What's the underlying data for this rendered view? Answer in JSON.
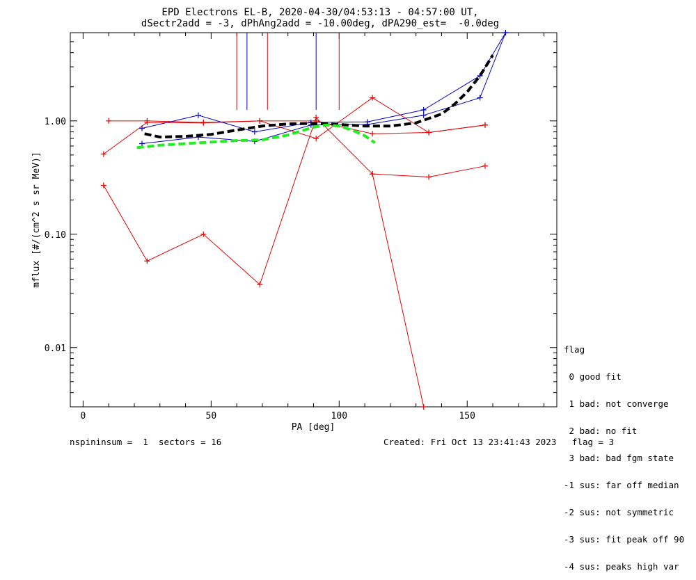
{
  "title_line1": "EPD Electrons EL-B, 2020-04-30/04:53:13 - 04:57:00 UT,",
  "title_line2": "dSectr2add = -3, dPhAng2add = -10.00deg, dPA290_est=  -0.0deg",
  "legend": {
    "title": "flag",
    "entries": [
      " 0 good fit",
      " 1 bad: not converge",
      " 2 bad: no fit",
      " 3 bad: bad fgm state",
      "-1 sus: far off median",
      "-2 sus: not symmetric",
      "-3 sus: fit peak off 90",
      "-4 sus: peaks high var"
    ]
  },
  "footer": {
    "left": "nspininsum =  1  sectors = 16",
    "right": "Created: Fri Oct 13 23:41:43 2023   flag = 3"
  },
  "colors": {
    "red": "#e60000",
    "blue": "#0000cc",
    "black": "#000000",
    "green": "#22ee22"
  },
  "chart_data": {
    "type": "line",
    "xlabel": "PA [deg]",
    "ylabel": "mflux [#/(cm^2 s sr MeV)]",
    "xlim": [
      -5,
      185
    ],
    "ylim": [
      0.003,
      6.0
    ],
    "yscale": "log",
    "xticks": [
      0,
      50,
      100,
      150
    ],
    "xtick_labels": [
      "0",
      "50",
      "100",
      "150"
    ],
    "yticks": [
      0.01,
      0.1,
      1.0
    ],
    "ytick_labels": [
      "0.01",
      "0.10",
      "1.00"
    ],
    "grid": false,
    "series": [
      {
        "color": "red",
        "marker": "+",
        "x": [
          8,
          25,
          47,
          69,
          91,
          113,
          135,
          157
        ],
        "y": [
          0.51,
          0.97,
          0.96,
          1.0,
          0.7,
          1.6,
          0.79,
          0.92
        ]
      },
      {
        "color": "red",
        "marker": "+",
        "x": [
          10,
          25,
          47,
          69,
          91,
          113,
          135,
          157
        ],
        "y": [
          1.0,
          1.0,
          0.97,
          1.0,
          1.0,
          0.77,
          0.79,
          0.92
        ]
      },
      {
        "color": "red",
        "marker": "+",
        "x": [
          8,
          25,
          47,
          69,
          91,
          113,
          135,
          157
        ],
        "y": [
          0.27,
          0.058,
          0.1,
          0.036,
          1.07,
          0.34,
          0.32,
          0.4
        ]
      },
      {
        "color": "red",
        "marker": "+",
        "x": [
          113,
          133
        ],
        "y": [
          0.34,
          0.003
        ]
      },
      {
        "color": "blue",
        "marker": "+",
        "x": [
          23,
          45,
          67,
          89,
          111,
          133,
          155,
          165
        ],
        "y": [
          0.86,
          1.12,
          0.8,
          0.97,
          0.98,
          1.25,
          2.5,
          6.0
        ]
      },
      {
        "color": "blue",
        "marker": "+",
        "x": [
          23,
          45,
          67,
          89,
          111,
          133,
          155,
          165
        ],
        "y": [
          0.63,
          0.72,
          0.66,
          0.92,
          0.93,
          1.12,
          1.6,
          6.0
        ]
      },
      {
        "color": "black",
        "dashed": true,
        "x": [
          24,
          30,
          40,
          50,
          60,
          70,
          80,
          90,
          100,
          110,
          120,
          130,
          140,
          145,
          150,
          155,
          160
        ],
        "y": [
          0.77,
          0.72,
          0.73,
          0.76,
          0.83,
          0.9,
          0.94,
          0.95,
          0.93,
          0.9,
          0.9,
          0.96,
          1.15,
          1.4,
          1.8,
          2.5,
          3.8
        ]
      },
      {
        "color": "green",
        "dashed": true,
        "x": [
          21,
          30,
          40,
          50,
          60,
          70,
          80,
          90,
          95,
          100,
          105,
          110,
          114
        ],
        "y": [
          0.58,
          0.61,
          0.63,
          0.65,
          0.67,
          0.68,
          0.75,
          0.88,
          0.92,
          0.9,
          0.83,
          0.74,
          0.64
        ]
      }
    ],
    "vlines": [
      {
        "color": "red",
        "x": 60,
        "y_from": 1.25,
        "y_to": 6.0
      },
      {
        "color": "red",
        "x": 72,
        "y_from": 1.25,
        "y_to": 6.0
      },
      {
        "color": "red",
        "x": 100,
        "y_from": 1.25,
        "y_to": 6.0
      },
      {
        "color": "blue",
        "x": 64,
        "y_from": 1.25,
        "y_to": 6.0
      },
      {
        "color": "blue",
        "x": 91,
        "y_from": 1.25,
        "y_to": 6.0
      }
    ]
  }
}
